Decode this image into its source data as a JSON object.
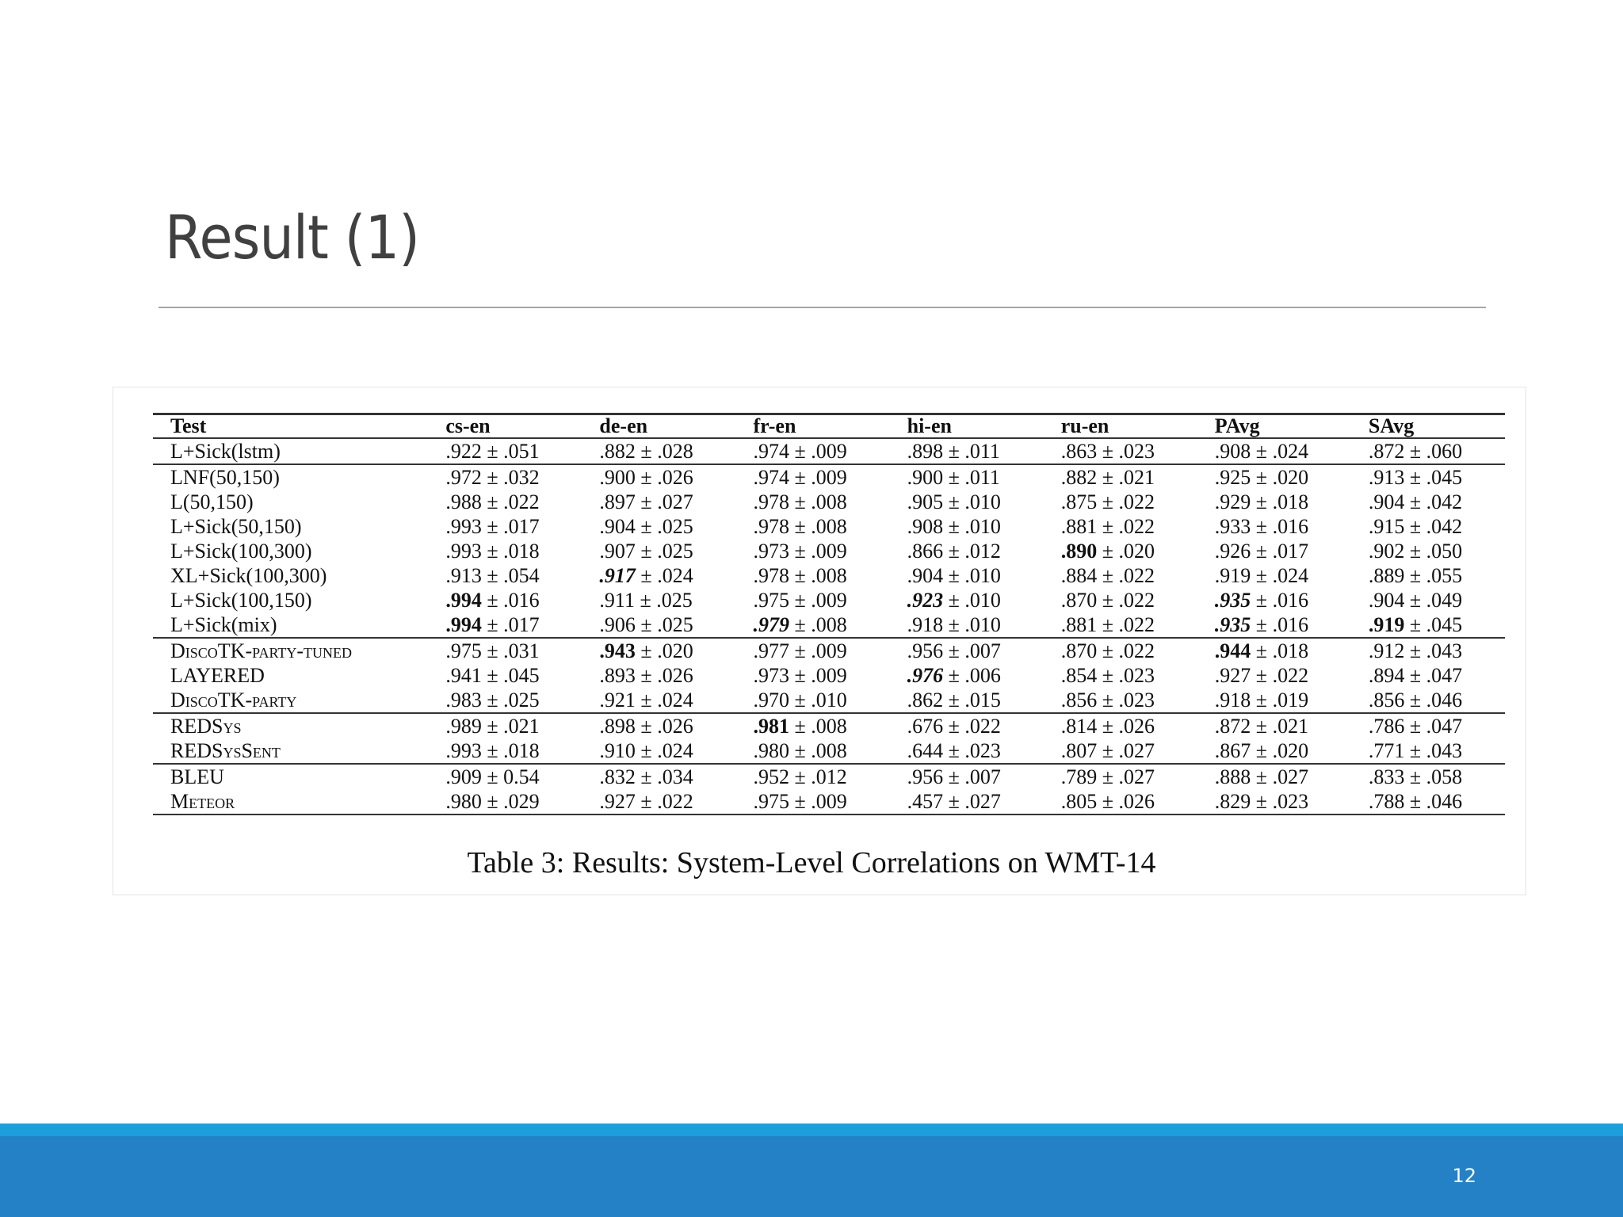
{
  "slide": {
    "title": "Result (1)",
    "page_number": "12"
  },
  "table": {
    "headers": [
      "Test",
      "cs-en",
      "de-en",
      "fr-en",
      "hi-en",
      "ru-en",
      "PAvg",
      "SAvg"
    ],
    "groups": [
      [
        [
          "L+Sick(lstm)",
          ".922 ± .051",
          ".882 ± .028",
          ".974 ± .009",
          ".898 ± .011",
          ".863 ± .023",
          ".908 ± .024",
          ".872 ± .060"
        ]
      ],
      [
        [
          "LNF(50,150)",
          ".972 ± .032",
          ".900 ± .026",
          ".974 ± .009",
          ".900 ± .011",
          ".882 ± .021",
          ".925 ± .020",
          ".913 ± .045"
        ],
        [
          "L(50,150)",
          ".988 ± .022",
          ".897 ± .027",
          ".978 ± .008",
          ".905 ± .010",
          ".875 ± .022",
          ".929 ± .018",
          ".904 ± .042"
        ],
        [
          "L+Sick(50,150)",
          ".993 ± .017",
          ".904 ± .025",
          ".978 ± .008",
          ".908 ± .010",
          ".881 ± .022",
          ".933 ± .016",
          ".915 ± .042"
        ],
        [
          "L+Sick(100,300)",
          ".993 ± .018",
          ".907 ± .025",
          ".973 ± .009",
          ".866 ± .012",
          ".890 ± .020",
          ".926 ± .017",
          ".902 ± .050"
        ],
        [
          "XL+Sick(100,300)",
          ".913 ± .054",
          ".917 ± .024",
          ".978 ± .008",
          ".904 ± .010",
          ".884 ± .022",
          ".919 ± .024",
          ".889 ± .055"
        ],
        [
          "L+Sick(100,150)",
          ".994 ± .016",
          ".911 ± .025",
          ".975 ± .009",
          ".923 ± .010",
          ".870 ± .022",
          ".935 ± .016",
          ".904 ± .049"
        ],
        [
          "L+Sick(mix)",
          ".994 ± .017",
          ".906 ± .025",
          ".979 ± .008",
          ".918 ± .010",
          ".881 ± .022",
          ".935 ± .016",
          ".919 ± .045"
        ]
      ],
      [
        [
          "DiscoTK-party-tuned",
          ".975 ± .031",
          ".943 ± .020",
          ".977 ± .009",
          ".956 ± .007",
          ".870 ± .022",
          ".944 ± .018",
          ".912 ± .043"
        ],
        [
          "LAYERED",
          ".941 ± .045",
          ".893 ± .026",
          ".973 ± .009",
          ".976 ± .006",
          ".854 ± .023",
          ".927 ± .022",
          ".894 ± .047"
        ],
        [
          "DiscoTK-party",
          ".983 ± .025",
          ".921 ± .024",
          ".970 ± .010",
          ".862 ± .015",
          ".856 ± .023",
          ".918 ± .019",
          ".856 ± .046"
        ]
      ],
      [
        [
          "REDSys",
          ".989 ± .021",
          ".898 ± .026",
          ".981 ± .008",
          ".676 ± .022",
          ".814 ± .026",
          ".872 ± .021",
          ".786 ± .047"
        ],
        [
          "REDSysSent",
          ".993 ± .018",
          ".910 ± .024",
          ".980 ± .008",
          ".644 ± .023",
          ".807 ± .027",
          ".867 ± .020",
          ".771 ± .043"
        ]
      ],
      [
        [
          "BLEU",
          ".909 ± 0.54",
          ".832 ± .034",
          ".952 ± .012",
          ".956 ± .007",
          ".789 ± .027",
          ".888 ± .027",
          ".833 ± .058"
        ],
        [
          "Meteor",
          ".980 ± .029",
          ".927 ± .022",
          ".975 ± .009",
          ".457 ± .027",
          ".805 ± .026",
          ".829 ± .023",
          ".788 ± .046"
        ]
      ]
    ],
    "bold_cells": [
      "1.5.1",
      "1.6.1",
      "1.3.5",
      "2.0.2",
      "2.0.6",
      "1.6.7",
      "3.0.3"
    ],
    "bold_italic_cells": [
      "1.4.2",
      "1.5.4",
      "1.6.3",
      "2.1.4",
      "1.5.6",
      "1.6.6"
    ],
    "small_caps_rows": [
      "2.0",
      "2.2",
      "3.0",
      "3.1",
      "4.1"
    ],
    "caption": "Table 3:  Results: System-Level Correlations on WMT-14"
  }
}
